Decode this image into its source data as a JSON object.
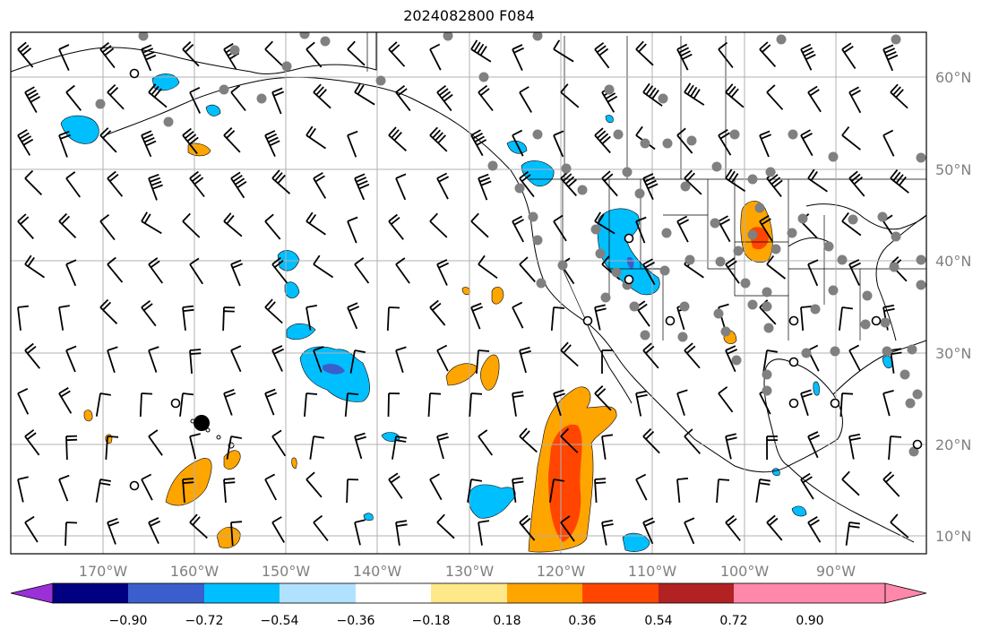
{
  "title": "2024082800 F084",
  "map": {
    "lat_labels": [
      "60°N",
      "50°N",
      "40°N",
      "30°N",
      "20°N",
      "10°N"
    ],
    "lon_labels": [
      "170°W",
      "160°W",
      "150°W",
      "140°W",
      "130°W",
      "120°W",
      "110°W",
      "100°W",
      "90°W"
    ],
    "grid": true,
    "extent": {
      "lon": [
        -180,
        -80
      ],
      "lat": [
        8,
        65
      ]
    }
  },
  "colorbar": {
    "tick_labels": [
      "−0.90",
      "−0.72",
      "−0.54",
      "−0.36",
      "−0.18",
      "0.18",
      "0.36",
      "0.54",
      "0.72",
      "0.90"
    ],
    "colors": [
      "#9b30d9",
      "#000080",
      "#3a5fcd",
      "#00bfff",
      "#b0e2ff",
      "#ffffff",
      "#ffe88a",
      "#ffa500",
      "#ff4500",
      "#b22222",
      "#ff88aa",
      "#ff88aa"
    ],
    "extend": "both"
  }
}
